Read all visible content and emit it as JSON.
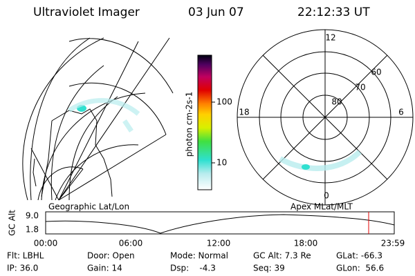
{
  "header": {
    "instrument": "Ultraviolet Imager",
    "date": "03 Jun 07",
    "time": "22:12:33 UT"
  },
  "colorbar": {
    "label": "photon cm-2s-1",
    "ticks": [
      "100",
      "10"
    ]
  },
  "polar_plot": {
    "mlt_labels": [
      "12",
      "18",
      "6",
      "0"
    ],
    "lat_labels": [
      "80",
      "70",
      "60"
    ]
  },
  "panel_labels": {
    "left": "Geographic Lat/Lon",
    "right": "Apex MLat/MLT"
  },
  "timeline": {
    "y_label": "GC Alt",
    "y_ticks": [
      "9.0",
      "1.8"
    ],
    "x_ticks": [
      "00:00",
      "06:00",
      "12:00",
      "18:00",
      "23:59"
    ]
  },
  "info": {
    "rows": [
      [
        "Flt: LBHL",
        "Door: Open",
        "Mode: Normal",
        "GC Alt: 7.3 Re",
        "GLat: -66.3"
      ],
      [
        "IP: 36.0",
        "Gain: 14",
        "Dsp:    -4.3",
        "Seq: 39",
        "GLon:  56.6"
      ]
    ]
  }
}
